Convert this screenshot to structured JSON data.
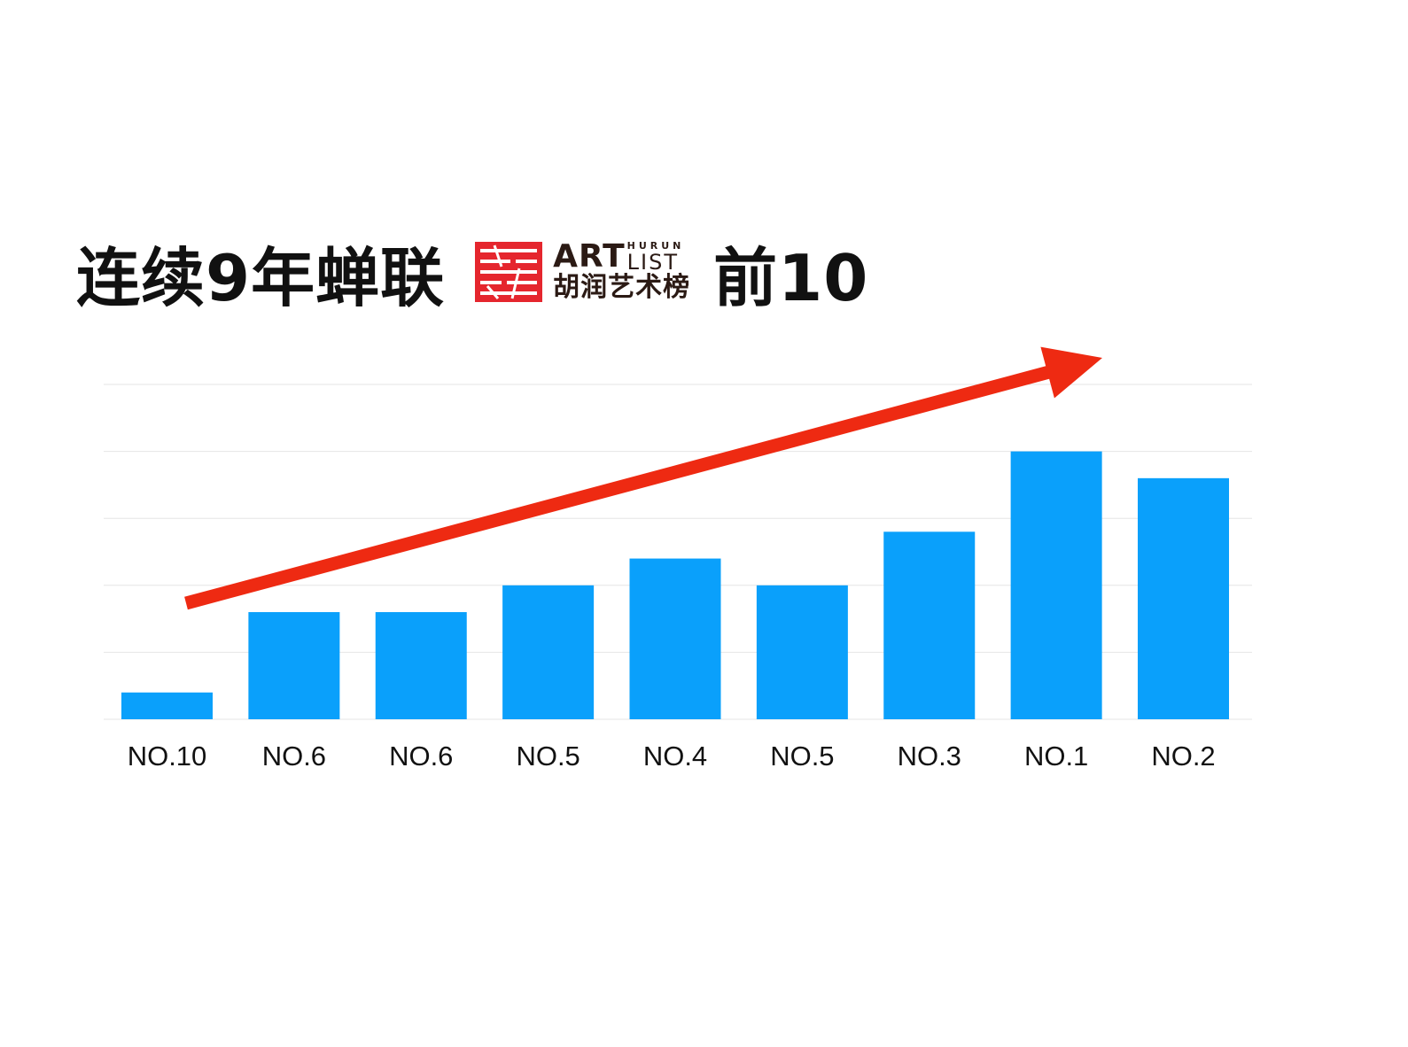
{
  "header": {
    "title_prefix": "连续9年蝉联",
    "title_suffix": "前10",
    "logo": {
      "art": "ART",
      "hurun": "HURUN",
      "list": "LIST",
      "chinese": "胡润艺术榜"
    }
  },
  "colors": {
    "bar": "#0aa0fb",
    "arrow": "#ee2a12",
    "grid": "#e6e6e6",
    "label": "#111111",
    "logo_red": "#e5262e"
  },
  "chart_data": {
    "type": "bar",
    "categories": [
      "NO.10",
      "NO.6",
      "NO.6",
      "NO.5",
      "NO.4",
      "NO.5",
      "NO.3",
      "NO.1",
      "NO.2"
    ],
    "values": [
      1,
      4,
      4,
      5,
      6,
      5,
      7,
      10,
      9
    ],
    "ylim": [
      0,
      12.5
    ],
    "grid": true,
    "y_tick_labels_shown": false,
    "annotation": "upward trend arrow"
  }
}
